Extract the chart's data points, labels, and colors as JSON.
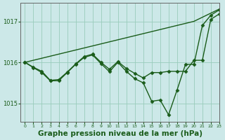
{
  "bg_color": "#cce8e8",
  "grid_color": "#99ccbb",
  "line_color": "#1a5c1a",
  "marker_color": "#1a5c1a",
  "xlabel": "Graphe pression niveau de la mer (hPa)",
  "xlabel_fontsize": 7.5,
  "xlim": [
    -0.5,
    23
  ],
  "ylim": [
    1014.55,
    1017.45
  ],
  "yticks": [
    1015,
    1016,
    1017
  ],
  "xticks": [
    0,
    1,
    2,
    3,
    4,
    5,
    6,
    7,
    8,
    9,
    10,
    11,
    12,
    13,
    14,
    15,
    16,
    17,
    18,
    19,
    20,
    21,
    22,
    23
  ],
  "series": [
    {
      "x": [
        0,
        1,
        2,
        3,
        4,
        5,
        6,
        7,
        8,
        9,
        10,
        11,
        12,
        13,
        14,
        15,
        16,
        17,
        18,
        19,
        20,
        21,
        22,
        23
      ],
      "y": [
        1016.0,
        1016.05,
        1016.1,
        1016.15,
        1016.2,
        1016.25,
        1016.3,
        1016.35,
        1016.4,
        1016.45,
        1016.5,
        1016.55,
        1016.6,
        1016.65,
        1016.7,
        1016.75,
        1016.8,
        1016.85,
        1016.9,
        1016.95,
        1017.0,
        1017.1,
        1017.2,
        1017.3
      ],
      "marker": "D",
      "markersize": 0,
      "linewidth": 1.0
    },
    {
      "x": [
        0,
        1,
        2,
        3,
        4,
        5,
        6,
        7,
        8,
        9,
        10,
        11,
        12,
        13,
        14,
        15,
        16,
        17,
        18,
        19,
        20,
        21,
        22,
        23
      ],
      "y": [
        1016.0,
        1015.87,
        1015.75,
        1015.55,
        1015.55,
        1015.75,
        1015.95,
        1016.12,
        1016.18,
        1015.97,
        1015.77,
        1016.0,
        1015.78,
        1015.6,
        1015.5,
        1015.05,
        1015.08,
        1014.72,
        1015.32,
        1015.95,
        1015.95,
        1016.9,
        1017.15,
        1017.28
      ],
      "marker": "D",
      "markersize": 2.5,
      "linewidth": 1.0
    },
    {
      "x": [
        0,
        1,
        2,
        3,
        4,
        5,
        6,
        7,
        8,
        9,
        10,
        11,
        12,
        13,
        14,
        15,
        16,
        17,
        18,
        19,
        20,
        21,
        22,
        23
      ],
      "y": [
        1016.0,
        1015.88,
        1015.78,
        1015.56,
        1015.58,
        1015.76,
        1015.96,
        1016.14,
        1016.2,
        1016.0,
        1015.83,
        1016.02,
        1015.85,
        1015.73,
        1015.62,
        1015.75,
        1015.75,
        1015.78,
        1015.78,
        1015.78,
        1016.05,
        1016.05,
        1017.05,
        1017.18
      ],
      "marker": "D",
      "markersize": 2.5,
      "linewidth": 1.0
    }
  ]
}
